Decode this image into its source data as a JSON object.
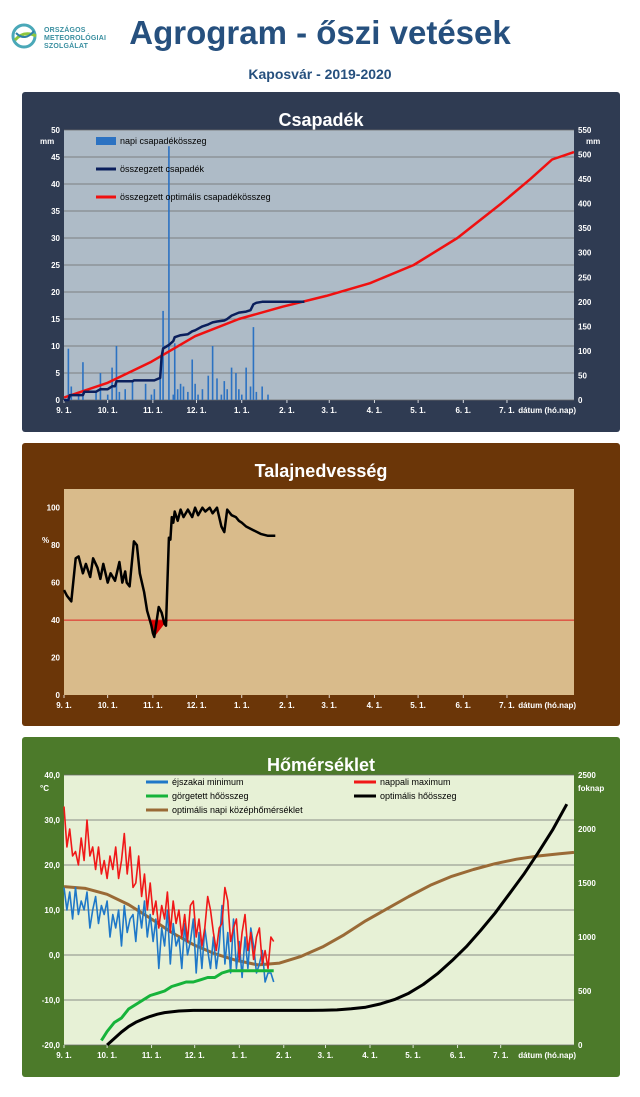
{
  "header": {
    "logo_lines": [
      "ORSZÁGOS",
      "METEOROLÓGIAI",
      "SZOLGÁLAT"
    ],
    "title": "Agrogram - őszi vetések",
    "subtitle": "Kaposvár  - 2019-2020"
  },
  "colors": {
    "title_blue": "#26507e",
    "precip_panel": "#2f3b52",
    "precip_plot": "#aebbc7",
    "soil_panel": "#6b3608",
    "soil_plot": "#d9bb8b",
    "temp_panel": "#4c7a2a",
    "temp_plot": "#e7f1d6",
    "daily_precip": "#2c72c2",
    "cum_precip": "#0b1f5c",
    "optimal_red": "#f01010",
    "night_min": "#1f78c8",
    "day_max": "#f01818",
    "rolling_heat": "#16b33a",
    "optimal_heat": "#000000",
    "optimal_mean": "#9a6a36"
  },
  "chart_data": [
    {
      "id": "precip",
      "type": "bar+line",
      "title": "Csapadék",
      "ylabel_left": "mm",
      "ylabel_right": "mm",
      "xlabel": "dátum (hó.nap)",
      "ylim_left": [
        0,
        50
      ],
      "ylim_right": [
        0,
        550
      ],
      "yticks_left": [
        "0",
        "5",
        "10",
        "15",
        "20",
        "25",
        "30",
        "35",
        "40",
        "45",
        "50"
      ],
      "yticks_right": [
        "0",
        "50",
        "100",
        "150",
        "200",
        "250",
        "300",
        "350",
        "400",
        "450",
        "500",
        "550"
      ],
      "xticks": [
        "9. 1.",
        "10. 1.",
        "11. 1.",
        "12. 1.",
        "1. 1.",
        "2. 1.",
        "3. 1.",
        "4. 1.",
        "5. 1.",
        "6. 1.",
        "7. 1."
      ],
      "grid": true,
      "legend_position": "top-left",
      "series": [
        {
          "name": "napi csapadékösszeg",
          "kind": "bar",
          "axis": "left",
          "x": [
            3,
            5,
            10,
            13,
            22,
            25,
            30,
            33,
            36,
            38,
            42,
            47,
            56,
            60,
            62,
            66,
            68,
            72,
            75,
            76,
            78,
            80,
            82,
            85,
            88,
            90,
            92,
            95,
            99,
            102,
            105,
            108,
            110,
            112,
            115,
            118,
            120,
            122,
            125,
            128,
            130,
            132,
            136,
            140
          ],
          "values": [
            9.5,
            2.5,
            1,
            7,
            1.5,
            5,
            1,
            6,
            10,
            1.5,
            2,
            3.5,
            3,
            1,
            2,
            5,
            16.5,
            47,
            1,
            10.5,
            2,
            3,
            2.5,
            1.5,
            7.5,
            3,
            1,
            2,
            4.5,
            10,
            4,
            1,
            3.5,
            2,
            6,
            5,
            2,
            1,
            6,
            2.5,
            13.5,
            1.5,
            2.5,
            1
          ]
        },
        {
          "name": "összegzett csapadék",
          "kind": "line",
          "axis": "right",
          "x": [
            0,
            3,
            4,
            10,
            13,
            14,
            22,
            25,
            30,
            33,
            35,
            36,
            47,
            48,
            56,
            60,
            62,
            66,
            67,
            68,
            72,
            75,
            76,
            80,
            85,
            88,
            90,
            95,
            99,
            102,
            105,
            110,
            112,
            115,
            120,
            125,
            128,
            130,
            132,
            136,
            150,
            165
          ],
          "values": [
            0,
            0,
            10,
            10,
            10,
            17,
            17,
            22,
            22,
            28,
            28,
            38,
            38,
            40,
            40,
            40,
            40,
            45,
            88,
            105,
            112,
            120,
            128,
            132,
            134,
            140,
            142,
            150,
            154,
            158,
            160,
            162,
            165,
            172,
            178,
            180,
            183,
            195,
            198,
            200,
            200,
            200
          ]
        },
        {
          "name": "összegzett optimális csapadékösszeg",
          "kind": "line",
          "axis": "right",
          "x": [
            0,
            30,
            60,
            90,
            120,
            150,
            180,
            210,
            240,
            270,
            300,
            320,
            335,
            350
          ],
          "values": [
            5,
            35,
            78,
            130,
            165,
            190,
            212,
            238,
            275,
            330,
            400,
            450,
            490,
            505
          ]
        }
      ]
    },
    {
      "id": "soil",
      "type": "line",
      "title": "Talajnedvesség",
      "ylabel": "%",
      "xlabel": "dátum (hó.nap)",
      "ylim": [
        0,
        110
      ],
      "yticks": [
        "0",
        "20",
        "40",
        "60",
        "80",
        "100"
      ],
      "xticks": [
        "9. 1.",
        "10. 1.",
        "11. 1.",
        "12. 1.",
        "1. 1.",
        "2. 1.",
        "3. 1.",
        "4. 1.",
        "5. 1.",
        "6. 1.",
        "7. 1."
      ],
      "grid": false,
      "threshold": 40,
      "series": [
        {
          "name": "talajnedvesség",
          "kind": "line",
          "x": [
            0,
            2,
            5,
            8,
            10,
            13,
            15,
            18,
            20,
            23,
            25,
            27,
            30,
            32,
            35,
            38,
            40,
            42,
            43,
            45,
            48,
            50,
            52,
            55,
            57,
            60,
            61,
            62,
            65,
            67,
            69,
            70,
            72,
            73,
            74,
            75,
            76,
            78,
            80,
            82,
            85,
            88,
            90,
            92,
            95,
            97,
            100,
            102,
            105,
            108,
            110,
            112,
            115,
            118,
            120,
            122,
            125,
            130,
            135,
            140,
            145
          ],
          "values": [
            56,
            53,
            50,
            73,
            74,
            65,
            70,
            63,
            73,
            68,
            62,
            70,
            60,
            65,
            61,
            71,
            60,
            66,
            60,
            58,
            82,
            80,
            65,
            55,
            45,
            37,
            33,
            31,
            47,
            44,
            38,
            37,
            84,
            83,
            95,
            92,
            98,
            93,
            99,
            95,
            99,
            95,
            100,
            96,
            100,
            98,
            100,
            97,
            100,
            90,
            87,
            99,
            96,
            95,
            93,
            92,
            90,
            88,
            86,
            85,
            85
          ]
        }
      ]
    },
    {
      "id": "temp",
      "type": "line",
      "title": "Hőmérséklet",
      "ylabel_left": "°C",
      "ylabel_right": "foknap",
      "xlabel": "dátum (hó.nap)",
      "ylim_left": [
        -20,
        40
      ],
      "ylim_right": [
        0,
        2500
      ],
      "yticks_left": [
        "-20,0",
        "-10,0",
        "0,0",
        "10,0",
        "20,0",
        "30,0",
        "40,0"
      ],
      "yticks_right": [
        "0",
        "500",
        "1000",
        "1500",
        "2000",
        "2500"
      ],
      "xticks": [
        "9. 1.",
        "10. 1.",
        "11. 1.",
        "12. 1.",
        "1. 1.",
        "2. 1.",
        "3. 1.",
        "4. 1.",
        "5. 1.",
        "6. 1.",
        "7. 1."
      ],
      "grid": true,
      "legend_position": "top",
      "series": [
        {
          "name": "éjszakai minimum",
          "kind": "line",
          "axis": "left",
          "x": [
            0,
            2,
            4,
            6,
            8,
            10,
            12,
            14,
            16,
            18,
            20,
            22,
            24,
            26,
            28,
            30,
            32,
            34,
            36,
            38,
            40,
            42,
            44,
            46,
            48,
            50,
            52,
            54,
            56,
            58,
            60,
            62,
            64,
            66,
            68,
            70,
            72,
            74,
            76,
            78,
            80,
            82,
            84,
            86,
            88,
            90,
            92,
            94,
            96,
            98,
            100,
            102,
            104,
            106,
            108,
            110,
            112,
            114,
            116,
            118,
            120,
            122,
            124,
            126,
            128,
            130,
            132,
            134,
            136,
            138,
            140,
            142,
            144,
            146
          ],
          "values": [
            15,
            10,
            14,
            8,
            15,
            9,
            12,
            10,
            14,
            6,
            10,
            13,
            7,
            11,
            9,
            12,
            4,
            9,
            6,
            10,
            2,
            11,
            5,
            8,
            9,
            3,
            11,
            6,
            12,
            4,
            9,
            3,
            8,
            -3,
            6,
            2,
            10,
            -2,
            7,
            2,
            4,
            -3,
            7,
            0,
            3,
            8,
            -4,
            5,
            -3,
            6,
            1,
            -3,
            4,
            -3,
            2,
            11,
            -2,
            5,
            -4,
            8,
            -3,
            3,
            -5,
            4,
            -3,
            6,
            2,
            -4,
            -2,
            1,
            -6,
            -4,
            -4,
            -6
          ]
        },
        {
          "name": "nappali maximum",
          "kind": "line",
          "axis": "left",
          "x": [
            0,
            2,
            4,
            6,
            8,
            10,
            12,
            14,
            16,
            18,
            20,
            22,
            24,
            26,
            28,
            30,
            32,
            34,
            36,
            38,
            40,
            42,
            44,
            46,
            48,
            50,
            52,
            54,
            56,
            58,
            60,
            62,
            64,
            66,
            68,
            70,
            72,
            74,
            76,
            78,
            80,
            82,
            84,
            86,
            88,
            90,
            92,
            94,
            96,
            98,
            100,
            102,
            104,
            106,
            108,
            110,
            112,
            114,
            116,
            118,
            120,
            122,
            124,
            126,
            128,
            130,
            132,
            134,
            136,
            138,
            140,
            142,
            144,
            146
          ],
          "values": [
            33,
            24,
            28,
            22,
            23,
            20,
            26,
            21,
            30,
            22,
            24,
            19,
            24,
            18,
            21,
            17,
            22,
            19,
            24,
            17,
            21,
            27,
            18,
            24,
            15,
            16,
            22,
            13,
            18,
            10,
            16,
            9,
            12,
            6,
            11,
            8,
            14,
            5,
            12,
            7,
            10,
            4,
            9,
            3,
            11,
            12,
            4,
            8,
            2,
            6,
            13,
            10,
            5,
            1,
            6,
            7,
            15,
            12,
            3,
            6,
            8,
            -1,
            5,
            9,
            1,
            5,
            -1,
            4,
            6,
            -2,
            1,
            -3,
            4,
            3
          ]
        },
        {
          "name": "görgetett hőösszeg",
          "kind": "line",
          "axis": "left",
          "x": [
            26,
            30,
            35,
            40,
            45,
            50,
            55,
            60,
            65,
            70,
            75,
            80,
            85,
            90,
            95,
            100,
            105,
            110,
            115,
            120,
            125,
            130,
            135,
            140,
            146
          ],
          "values": [
            -19,
            -17,
            -15,
            -14,
            -12,
            -11,
            -10,
            -9,
            -8.5,
            -8,
            -7,
            -6.5,
            -6,
            -6,
            -5.5,
            -5,
            -5,
            -4,
            -3.5,
            -3.5,
            -3.5,
            -3.5,
            -3.5,
            -3.5,
            -3.5
          ]
        },
        {
          "name": "optimális hőösszeg",
          "kind": "line",
          "axis": "right",
          "x": [
            30,
            35,
            40,
            45,
            50,
            55,
            60,
            65,
            70,
            80,
            90,
            100,
            110,
            120,
            130,
            140,
            150,
            160,
            170,
            180,
            190,
            200,
            210,
            220,
            230,
            240,
            250,
            260,
            270,
            280,
            290,
            300,
            310,
            320,
            330,
            340,
            350
          ],
          "values": [
            0,
            60,
            120,
            170,
            210,
            240,
            265,
            285,
            300,
            315,
            320,
            320,
            320,
            320,
            320,
            320,
            320,
            320,
            320,
            322,
            325,
            335,
            350,
            380,
            420,
            480,
            560,
            660,
            780,
            910,
            1060,
            1220,
            1400,
            1580,
            1780,
            1990,
            2230
          ]
        },
        {
          "name": "optimális napi középhőmérséklet",
          "kind": "line",
          "axis": "left",
          "x": [
            0,
            15,
            30,
            45,
            60,
            75,
            90,
            105,
            120,
            135,
            150,
            165,
            180,
            195,
            210,
            225,
            240,
            255,
            270,
            285,
            300,
            315,
            330,
            345,
            355
          ],
          "values": [
            15.2,
            14.8,
            13.5,
            11.2,
            8.2,
            5.0,
            2.3,
            0.3,
            -1.2,
            -2.2,
            -1.8,
            -0.3,
            1.8,
            4.5,
            7.6,
            10.3,
            13.0,
            15.5,
            17.5,
            19.0,
            20.3,
            21.3,
            22.0,
            22.5,
            22.8
          ]
        }
      ]
    }
  ]
}
